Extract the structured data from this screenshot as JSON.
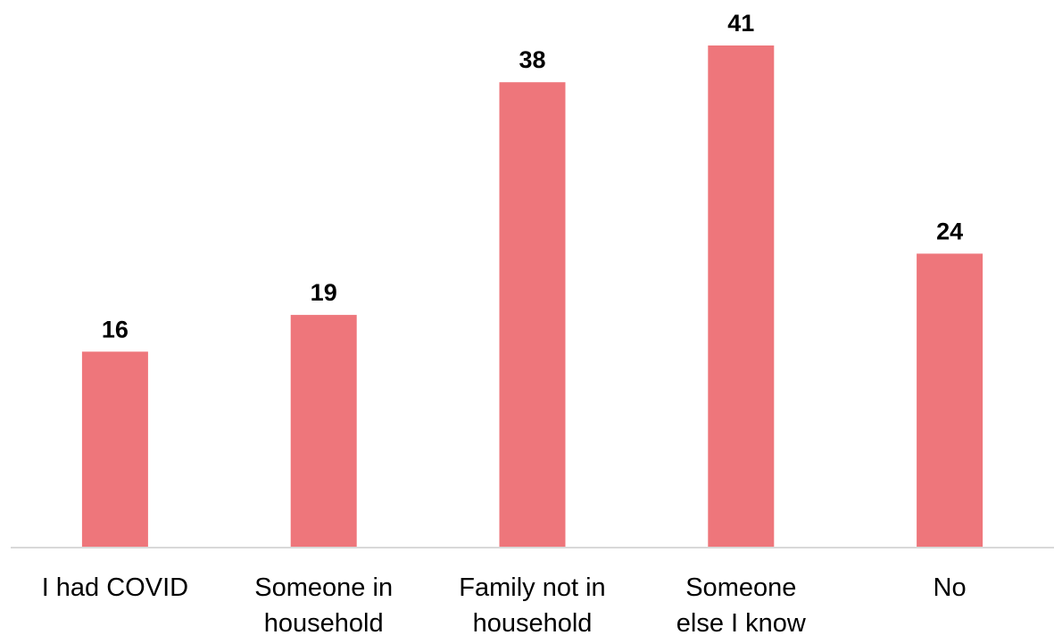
{
  "chart_data": {
    "type": "bar",
    "categories": [
      [
        "I had COVID"
      ],
      [
        "Someone in",
        "household"
      ],
      [
        "Family not in",
        "household"
      ],
      [
        "Someone",
        "else I know"
      ],
      [
        "No"
      ]
    ],
    "values": [
      16,
      19,
      38,
      41,
      24
    ],
    "value_labels": [
      "16",
      "19",
      "38",
      "41",
      "24"
    ],
    "title": "",
    "xlabel": "",
    "ylabel": "",
    "ylim": [
      0,
      45
    ],
    "grid": false,
    "legend": "none",
    "colors": {
      "bar": "#EE767B",
      "axis": "#D9D9D9"
    }
  }
}
